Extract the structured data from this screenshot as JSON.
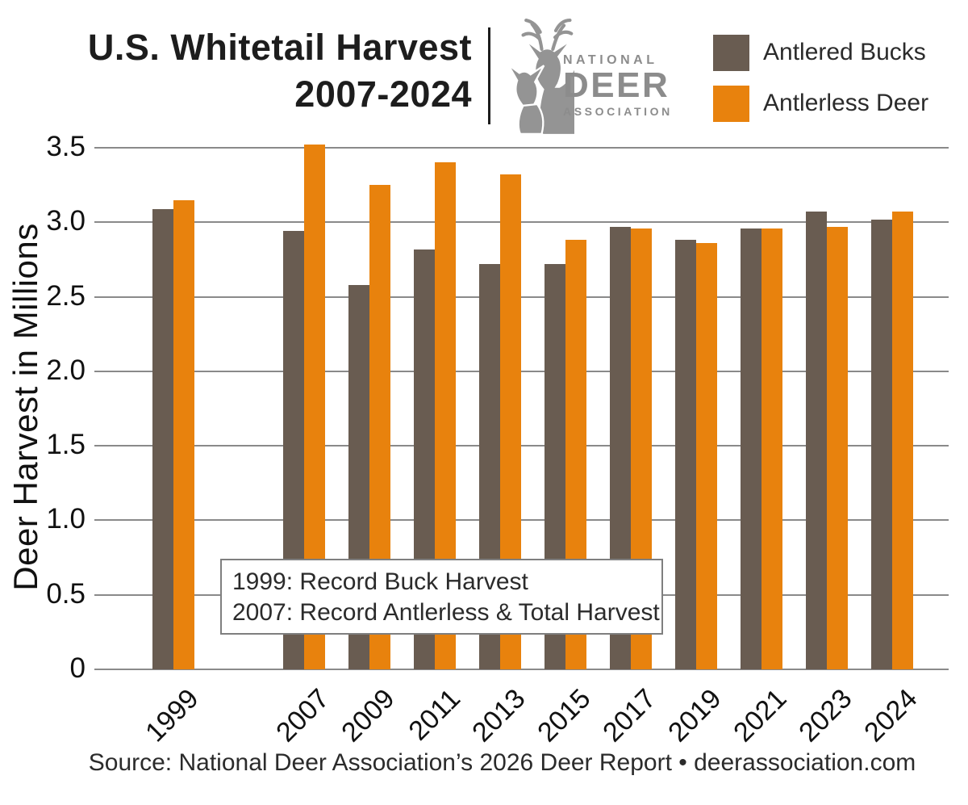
{
  "header": {
    "title_line1": "U.S. Whitetail Harvest",
    "title_line2": "2007-2024",
    "logo": {
      "alt": "National Deer Association logo",
      "line1": "NATIONAL",
      "line2": "DEER",
      "line3": "ASSOCIATION"
    }
  },
  "chart_data": {
    "type": "bar",
    "title": "U.S. Whitetail Harvest 2007-2024",
    "xlabel": "",
    "ylabel": "Deer Harvest in Millions",
    "ylim": [
      0,
      3.5
    ],
    "ytick_labels": [
      "3.5",
      "3.0",
      "2.5",
      "2.0",
      "1.5",
      "1.0",
      "0.5",
      "0"
    ],
    "grid": true,
    "legend_position": "top-right",
    "categories": [
      "1999",
      "2007",
      "2009",
      "2011",
      "2013",
      "2015",
      "2017",
      "2019",
      "2021",
      "2023",
      "2024"
    ],
    "x_slots": [
      0,
      2,
      3,
      4,
      5,
      6,
      7,
      8,
      9,
      10,
      11
    ],
    "series": [
      {
        "name": "Antlered Bucks",
        "color": "#695C51",
        "values": [
          3.09,
          2.94,
          2.58,
          2.82,
          2.72,
          2.72,
          2.97,
          2.88,
          2.96,
          3.07,
          3.02
        ]
      },
      {
        "name": "Antlerless Deer",
        "color": "#E8820D",
        "values": [
          3.15,
          3.52,
          3.25,
          3.4,
          3.32,
          2.88,
          2.96,
          2.86,
          2.96,
          2.97,
          3.07
        ]
      }
    ],
    "annotation": {
      "line1": "1999: Record Buck Harvest",
      "line2": "2007: Record Antlerless & Total Harvest"
    }
  },
  "footer": {
    "source": "Source: National Deer Association’s 2026 Deer Report • deerassociation.com"
  },
  "colors": {
    "antlered_bucks": "#695C51",
    "antlerless_deer": "#E8820D",
    "gridline": "#8A8A8A",
    "logo_gray": "#949494",
    "title_text": "#1D1D1D"
  }
}
